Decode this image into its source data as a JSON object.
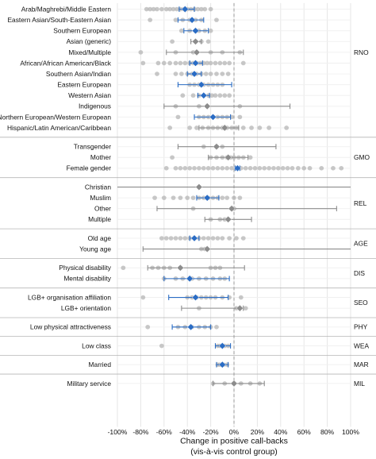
{
  "chart_data": {
    "type": "forest-dot",
    "xlabel_line1": "Change in positive call-backs",
    "xlabel_line2": "(vis-à-vis control group)",
    "xlim": [
      -100,
      100
    ],
    "xticks": [
      -100,
      -80,
      -60,
      -40,
      -20,
      0,
      20,
      40,
      60,
      80,
      100
    ],
    "xtick_labels": [
      "-100%",
      "-80%",
      "-60%",
      "-40%",
      "-20%",
      "0%",
      "20%",
      "40%",
      "60%",
      "80%",
      "100%"
    ],
    "reference_line": 0,
    "grid": true,
    "colors": {
      "significant": "#2a6cc4",
      "not_significant": "#8c8c8c",
      "study_points": "#b3b3b3",
      "panel_divider": "#b5b5b5",
      "gridline": "#e6e6e6"
    },
    "groups": [
      {
        "label": "RNO",
        "rows": [
          {
            "label": "Arab/Maghrebi/Middle Eastern",
            "estimate": -42,
            "ci": [
              -47,
              -34
            ],
            "significant": true,
            "points": [
              -75,
              -72,
              -69,
              -66,
              -62,
              -58,
              -55,
              -52,
              -49,
              -46,
              -43,
              -40,
              -37,
              -34,
              -31,
              -28,
              -25,
              -20
            ]
          },
          {
            "label": "Eastern Asian/South-Eastern Asian",
            "estimate": -36,
            "ci": [
              -48,
              -26
            ],
            "significant": true,
            "points": [
              -72,
              -50,
              -44,
              -38,
              -33,
              -28,
              -15
            ]
          },
          {
            "label": "Southern European",
            "estimate": -33,
            "ci": [
              -43,
              -22
            ],
            "significant": true,
            "points": [
              -45,
              -38,
              -30,
              -25,
              -20
            ]
          },
          {
            "label": "Asian (generic)",
            "estimate": -33,
            "ci": [
              -37,
              -28
            ],
            "significant": false,
            "points": [
              -53,
              -33,
              -28,
              -22
            ]
          },
          {
            "label": "Mixed/Multiple",
            "estimate": -32,
            "ci": [
              -58,
              8
            ],
            "significant": false,
            "points": [
              -80,
              -50,
              -35,
              -20,
              -10,
              5
            ]
          },
          {
            "label": "African/African American/Black",
            "estimate": -33,
            "ci": [
              -38,
              -27
            ],
            "significant": true,
            "points": [
              -78,
              -65,
              -60,
              -55,
              -50,
              -46,
              -42,
              -38,
              -35,
              -32,
              -29,
              -26,
              -23,
              -20,
              -16,
              -12,
              -8,
              -4,
              8
            ]
          },
          {
            "label": "Southern Asian/Indian",
            "estimate": -34,
            "ci": [
              -40,
              -28
            ],
            "significant": true,
            "points": [
              -66,
              -50,
              -45,
              -40,
              -36,
              -32,
              -28,
              -24,
              -20,
              -15,
              -10,
              -5
            ]
          },
          {
            "label": "Eastern European",
            "estimate": -28,
            "ci": [
              -48,
              -2
            ],
            "significant": true,
            "points": [
              -38,
              -34,
              -30,
              -26,
              -22,
              -18,
              -14,
              -10
            ]
          },
          {
            "label": "Western Asian",
            "estimate": -26,
            "ci": [
              -31,
              -21
            ],
            "significant": true,
            "points": [
              -44,
              -35,
              -30,
              -26,
              -22,
              -19,
              -16,
              -12,
              -8,
              -4
            ]
          },
          {
            "label": "Indigenous",
            "estimate": -23,
            "ci": [
              -60,
              48
            ],
            "significant": false,
            "points": [
              -50,
              -30,
              5
            ]
          },
          {
            "label": "Northern European/Western European",
            "estimate": -18,
            "ci": [
              -34,
              -3
            ],
            "significant": true,
            "points": [
              -48,
              -30,
              -26,
              -22,
              -18,
              -14,
              -10,
              -6,
              -2,
              5
            ]
          },
          {
            "label": "Hispanic/Latin American/Caribbean",
            "estimate": -8,
            "ci": [
              -30,
              4
            ],
            "significant": false,
            "points": [
              -55,
              -38,
              -32,
              -27,
              -22,
              -18,
              -14,
              -10,
              -6,
              -2,
              2,
              8,
              15,
              22,
              30,
              45
            ]
          }
        ]
      },
      {
        "label": "GMO",
        "rows": [
          {
            "label": "Transgender",
            "estimate": -15,
            "ci": [
              -48,
              36
            ],
            "significant": false,
            "points": [
              -26,
              -15,
              -10
            ]
          },
          {
            "label": "Mother",
            "estimate": -5,
            "ci": [
              -22,
              12
            ],
            "significant": false,
            "points": [
              -53,
              -20,
              -15,
              -10,
              -6,
              -3,
              0,
              4,
              8,
              14
            ]
          },
          {
            "label": "Female gender",
            "estimate": 3,
            "ci": [
              1,
              5
            ],
            "significant": true,
            "points": [
              -58,
              -50,
              -46,
              -42,
              -38,
              -34,
              -30,
              -26,
              -22,
              -18,
              -14,
              -10,
              -6,
              -2,
              2,
              6,
              10,
              14,
              18,
              22,
              26,
              30,
              34,
              38,
              42,
              46,
              50,
              55,
              60,
              65,
              75,
              85,
              92
            ]
          }
        ]
      },
      {
        "label": "REL",
        "rows": [
          {
            "label": "Christian",
            "estimate": -30,
            "ci": [
              -100,
              100
            ],
            "significant": false,
            "points": [
              -30
            ]
          },
          {
            "label": "Muslim",
            "estimate": -23,
            "ci": [
              -32,
              -13
            ],
            "significant": true,
            "points": [
              -68,
              -60,
              -52,
              -46,
              -40,
              -35,
              -30,
              -26,
              -22,
              -18,
              -14,
              -10,
              -6,
              0,
              5
            ]
          },
          {
            "label": "Other",
            "estimate": -2,
            "ci": [
              -66,
              88
            ],
            "significant": false,
            "points": [
              -35,
              0
            ]
          },
          {
            "label": "Multiple",
            "estimate": -5,
            "ci": [
              -25,
              15
            ],
            "significant": false,
            "points": [
              -20,
              -12,
              -8,
              -5
            ]
          }
        ]
      },
      {
        "label": "AGE",
        "rows": [
          {
            "label": "Old age",
            "estimate": -34,
            "ci": [
              -38,
              -30
            ],
            "significant": true,
            "points": [
              -62,
              -58,
              -54,
              -50,
              -46,
              -42,
              -38,
              -34,
              -30,
              -26,
              -22,
              -18,
              -14,
              -10,
              -4,
              2,
              8
            ]
          },
          {
            "label": "Young age",
            "estimate": -23,
            "ci": [
              -78,
              100
            ],
            "significant": false,
            "points": [
              -28,
              -25
            ]
          }
        ]
      },
      {
        "label": "DIS",
        "rows": [
          {
            "label": "Physical disability",
            "estimate": -46,
            "ci": [
              -74,
              9
            ],
            "significant": false,
            "points": [
              -95,
              -70,
              -65,
              -60,
              -55,
              -20,
              -16,
              -12
            ]
          },
          {
            "label": "Mental disability",
            "estimate": -38,
            "ci": [
              -60,
              -4
            ],
            "significant": true,
            "points": [
              -60,
              -50,
              -44,
              -36,
              -30,
              -24,
              -18,
              -12,
              -8
            ]
          }
        ]
      },
      {
        "label": "SEO",
        "rows": [
          {
            "label": "LGB+ organisation affiliation",
            "estimate": -33,
            "ci": [
              -56,
              -5
            ],
            "significant": true,
            "points": [
              -78,
              -40,
              -36,
              -32,
              -28,
              -24,
              -20,
              -16,
              -10,
              -4,
              6
            ]
          },
          {
            "label": "LGB+ orientation",
            "estimate": 5,
            "ci": [
              -45,
              8
            ],
            "significant": false,
            "points": [
              -30,
              2,
              10
            ]
          }
        ]
      },
      {
        "label": "PHY",
        "rows": [
          {
            "label": "Low physical attractiveness",
            "estimate": -37,
            "ci": [
              -53,
              -20
            ],
            "significant": true,
            "points": [
              -74,
              -48,
              -42,
              -36,
              -30,
              -25,
              -20,
              -15
            ]
          }
        ]
      },
      {
        "label": "WEA",
        "rows": [
          {
            "label": "Low class",
            "estimate": -10,
            "ci": [
              -16,
              -3
            ],
            "significant": true,
            "points": [
              -62,
              -14,
              -12,
              -10,
              -8,
              -5
            ]
          }
        ]
      },
      {
        "label": "MAR",
        "rows": [
          {
            "label": "Married",
            "estimate": -10,
            "ci": [
              -15,
              -5
            ],
            "significant": true,
            "points": [
              -14,
              -12,
              -9,
              -6
            ]
          }
        ]
      },
      {
        "label": "MIL",
        "rows": [
          {
            "label": "Military service",
            "estimate": 0,
            "ci": [
              -18,
              26
            ],
            "significant": false,
            "points": [
              -18,
              -8,
              0,
              6,
              14,
              22
            ]
          }
        ]
      }
    ]
  }
}
